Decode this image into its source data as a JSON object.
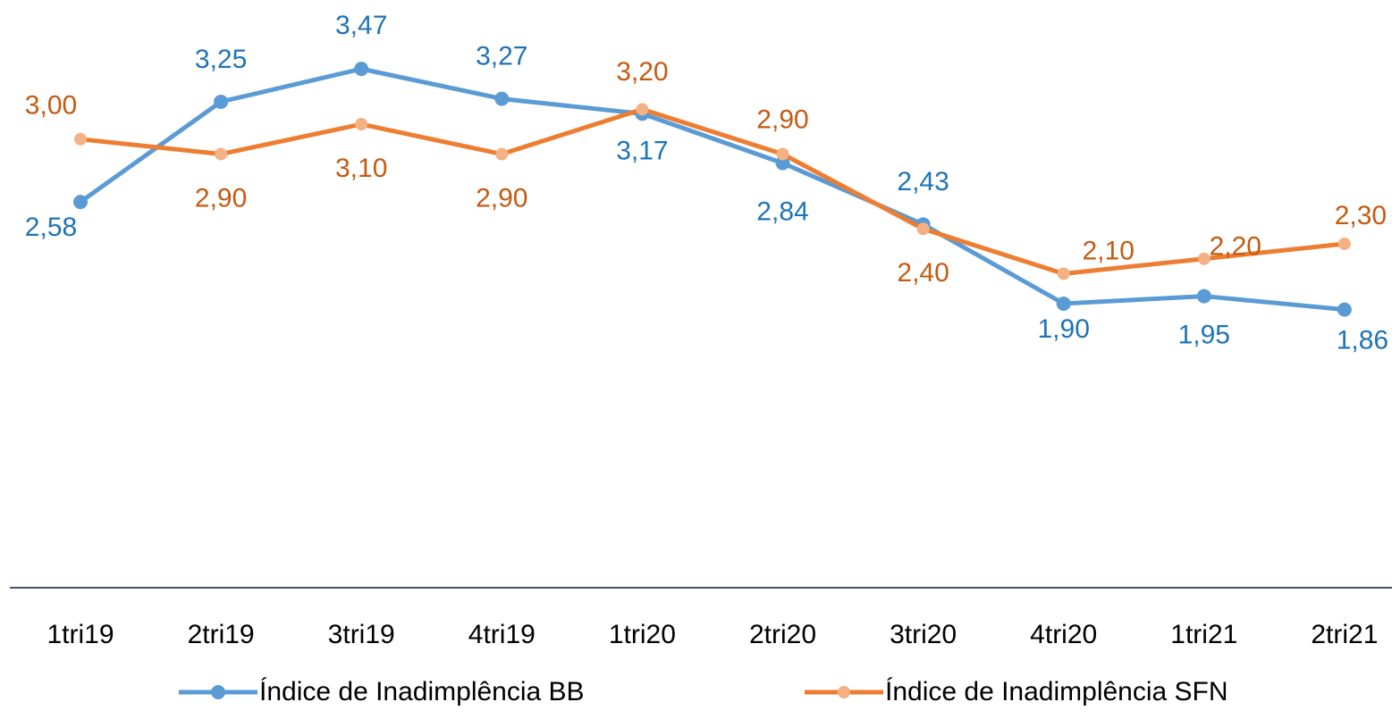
{
  "chart_data": {
    "type": "line",
    "categories": [
      "1tri19",
      "2tri19",
      "3tri19",
      "4tri19",
      "1tri20",
      "2tri20",
      "3tri20",
      "4tri20",
      "1tri21",
      "2tri21"
    ],
    "ylim": [
      0,
      4
    ],
    "legend": "bottom",
    "series": [
      {
        "name": "Índice de Inadimplência BB",
        "color": "#5b9bd5",
        "marker_color": "#5b9bd5",
        "label_color": "#1f73b8",
        "values": [
          2.58,
          3.25,
          3.47,
          3.27,
          3.17,
          2.84,
          2.43,
          1.9,
          1.95,
          1.86
        ],
        "value_labels": [
          "2,58",
          "3,25",
          "3,47",
          "3,27",
          "3,17",
          "2,84",
          "2,43",
          "1,90",
          "1,95",
          "1,86"
        ]
      },
      {
        "name": "Índice de Inadimplência SFN",
        "color": "#ed7d31",
        "marker_color": "#f4b183",
        "label_color": "#c55a11",
        "values": [
          3.0,
          2.9,
          3.1,
          2.9,
          3.2,
          2.9,
          2.4,
          2.1,
          2.2,
          2.3
        ],
        "value_labels": [
          "3,00",
          "2,90",
          "3,10",
          "2,90",
          "3,20",
          "2,90",
          "2,40",
          "2,10",
          "2,20",
          "2,30"
        ]
      }
    ]
  }
}
